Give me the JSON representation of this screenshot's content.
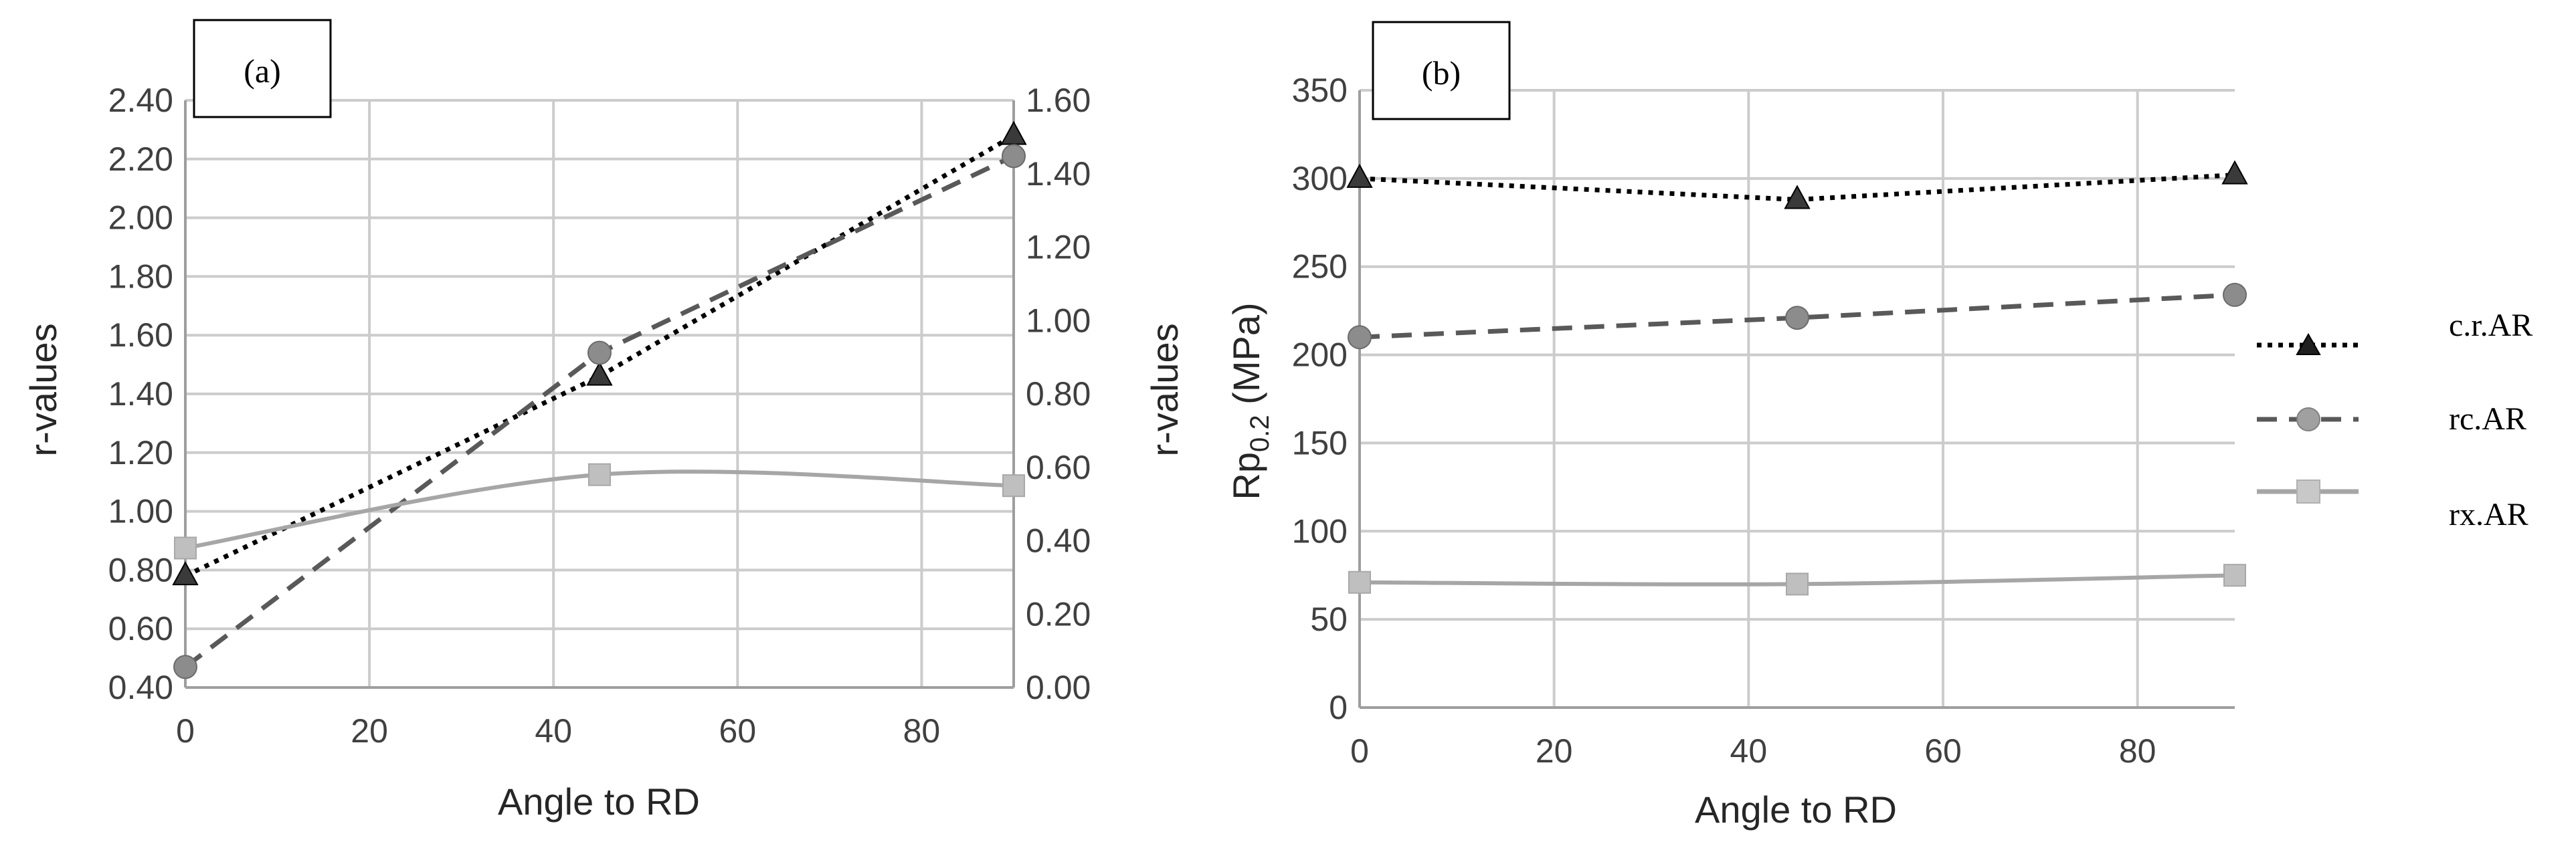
{
  "chart_data": [
    {
      "panel_label": "(a)",
      "type": "line",
      "xlabel": "Angle to RD",
      "ylabel": "r-values",
      "ylabel_right": "r-values",
      "xlim": [
        0,
        90
      ],
      "xticks": [
        "0",
        "20",
        "40",
        "60",
        "80"
      ],
      "ylim": [
        0.4,
        2.4
      ],
      "yticks": [
        "0.40",
        "0.60",
        "0.80",
        "1.00",
        "1.20",
        "1.40",
        "1.60",
        "1.80",
        "2.00",
        "2.20",
        "2.40"
      ],
      "y2lim": [
        0.0,
        1.6
      ],
      "y2ticks": [
        "0.00",
        "0.20",
        "0.40",
        "0.60",
        "0.80",
        "1.00",
        "1.20",
        "1.40",
        "1.60"
      ],
      "grid": true,
      "x": [
        0,
        45,
        90
      ],
      "series": [
        {
          "name": "c.r.AR",
          "values": [
            0.78,
            1.46,
            2.28
          ],
          "axis": "left",
          "marker": "triangle",
          "line": "dotted",
          "color": "#000000",
          "marker_color": "#3a3a3a"
        },
        {
          "name": "rc.AR",
          "values": [
            0.47,
            1.54,
            2.21
          ],
          "axis": "left",
          "marker": "circle",
          "line": "dashed",
          "color": "#595959",
          "marker_color": "#8c8c8c"
        },
        {
          "name": "rx.AR",
          "values": [
            0.38,
            0.58,
            0.55
          ],
          "axis": "right",
          "marker": "square",
          "line": "solid",
          "color": "#a6a6a6",
          "marker_color": "#bfbfbf"
        }
      ]
    },
    {
      "panel_label": "(b)",
      "type": "line",
      "xlabel": "Angle to RD",
      "ylabel_main": "Rp",
      "ylabel_sub": "0.2",
      "ylabel_unit": " (MPa)",
      "xlim": [
        0,
        90
      ],
      "xticks": [
        "0",
        "20",
        "40",
        "60",
        "80"
      ],
      "ylim": [
        0,
        350
      ],
      "yticks": [
        "0",
        "50",
        "100",
        "150",
        "200",
        "250",
        "300",
        "350"
      ],
      "grid": true,
      "x": [
        0,
        45,
        90
      ],
      "series": [
        {
          "name": "c.r.AR",
          "values": [
            300,
            288,
            302
          ],
          "marker": "triangle",
          "line": "dotted",
          "color": "#000000",
          "marker_color": "#3a3a3a"
        },
        {
          "name": "rc.AR",
          "values": [
            210,
            221,
            234
          ],
          "marker": "circle",
          "line": "dashed",
          "color": "#595959",
          "marker_color": "#8c8c8c"
        },
        {
          "name": "rx.AR",
          "values": [
            71,
            70,
            75
          ],
          "marker": "square",
          "line": "solid",
          "color": "#a6a6a6",
          "marker_color": "#bfbfbf"
        }
      ]
    }
  ],
  "legend": {
    "placement": "right",
    "items": [
      "c.r.AR",
      "rc.AR",
      "rx.AR"
    ]
  }
}
